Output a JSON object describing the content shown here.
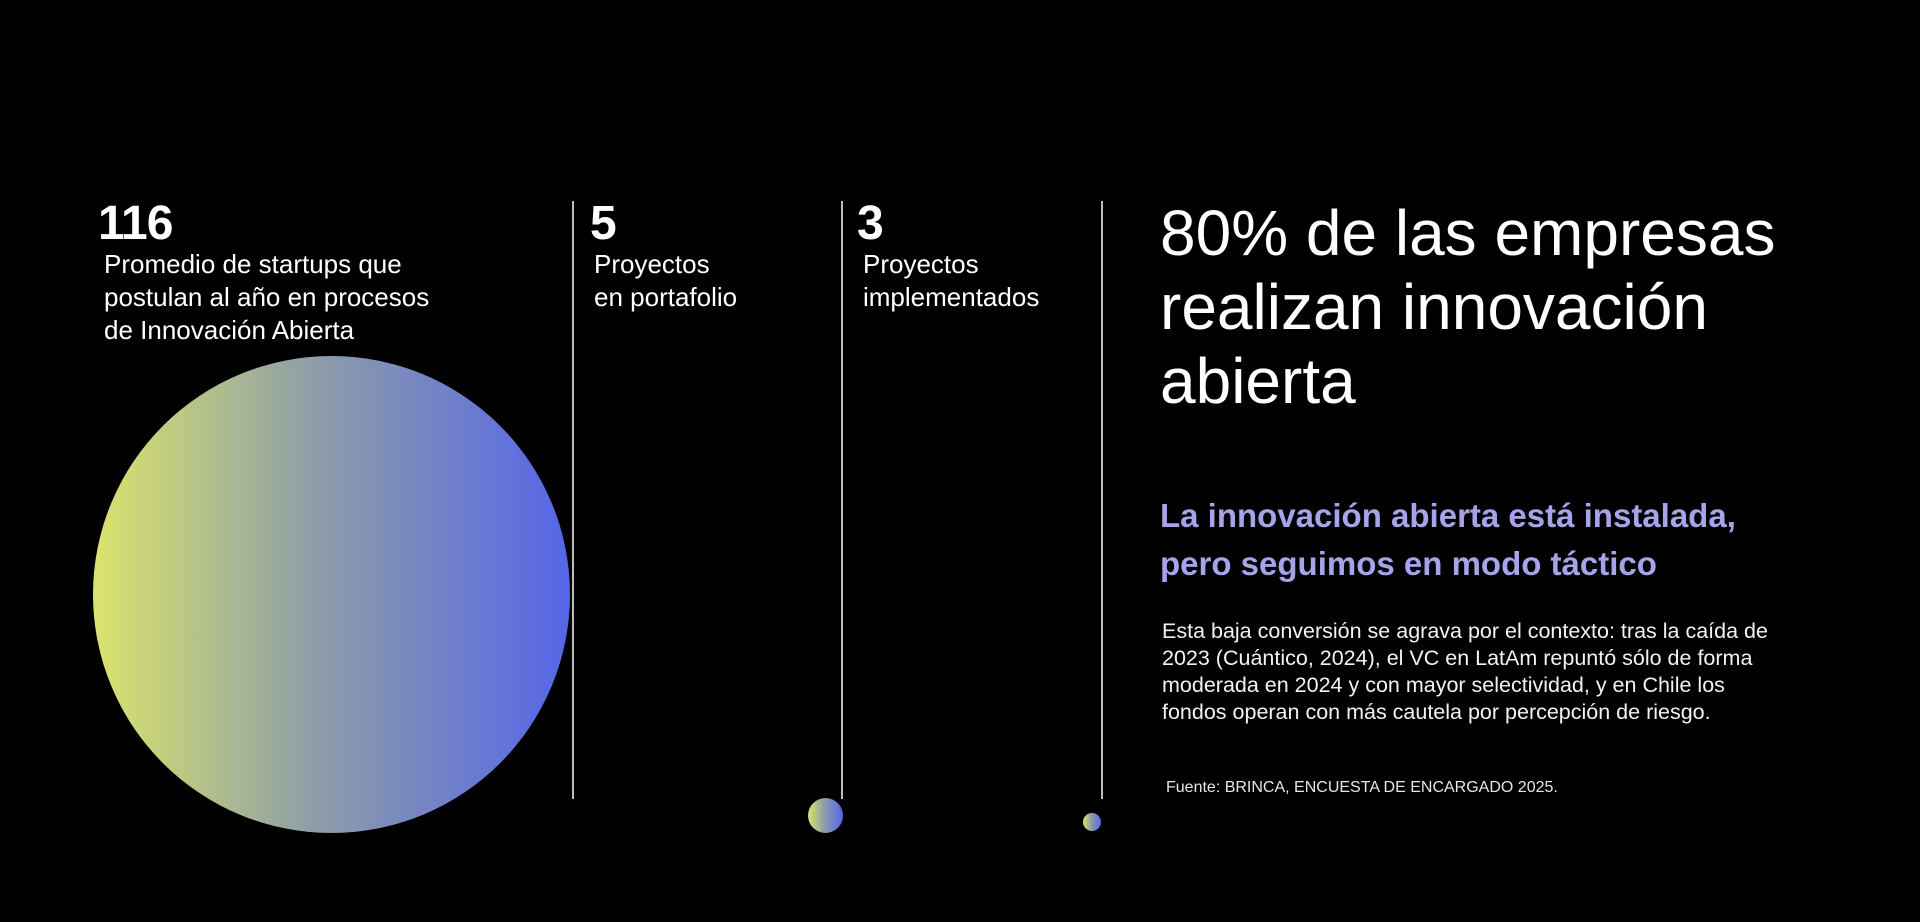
{
  "stats": [
    {
      "number": "116",
      "label_lines": [
        "Promedio de startups que",
        "postulan al año en procesos",
        "de Innovación Abierta"
      ]
    },
    {
      "number": "5",
      "label_lines": [
        "Proyectos",
        "en portafolio"
      ]
    },
    {
      "number": "3",
      "label_lines": [
        "Proyectos",
        "implementados"
      ]
    }
  ],
  "headline_lines": [
    "80% de las empresas",
    "realizan innovación",
    "abierta"
  ],
  "subhead_lines": [
    "La innovación abierta está instalada,",
    "pero seguimos en modo táctico"
  ],
  "body_lines": [
    "Esta baja conversión se agrava por el contexto: tras la caída de",
    "2023 (Cuántico, 2024), el VC en LatAm repuntó sólo de forma",
    "moderada en 2024 y con mayor selectividad, y en Chile los",
    "fondos operan con más cautela por percepción de riesgo."
  ],
  "source": "Fuente: BRINCA, ENCUESTA DE ENCARGADO 2025.",
  "colors": {
    "background": "#000000",
    "subhead": "#a7a3ea",
    "gradient_start": "#dbe46c",
    "gradient_end": "#5565e8",
    "divider": "#bdbdbd"
  }
}
